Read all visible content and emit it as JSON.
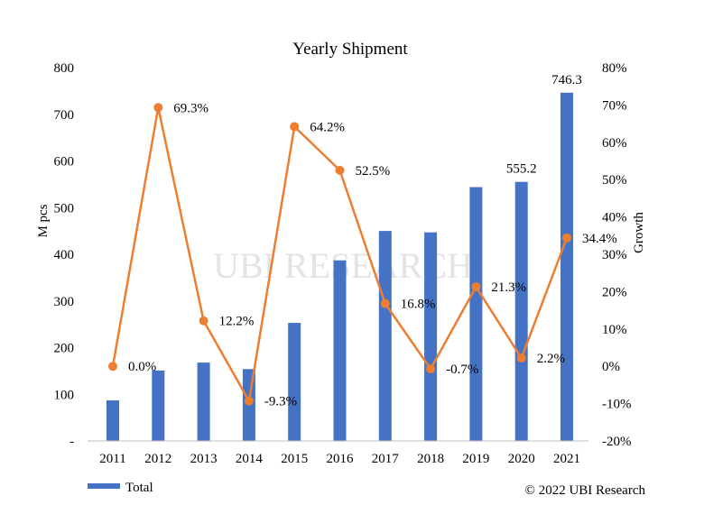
{
  "chart_data": {
    "type": "bar+line",
    "title": "Yearly Shipment",
    "categories": [
      "2011",
      "2012",
      "2013",
      "2014",
      "2015",
      "2016",
      "2017",
      "2018",
      "2019",
      "2020",
      "2021"
    ],
    "series": [
      {
        "name": "Total",
        "type": "bar",
        "axis": "left",
        "color": "#4472C4",
        "values": [
          87,
          151,
          168,
          154,
          253,
          387,
          450,
          447,
          544,
          555.2,
          746.3
        ],
        "data_labels": [
          "",
          "",
          "",
          "",
          "",
          "",
          "",
          "",
          "",
          "555.2",
          "746.3"
        ]
      },
      {
        "type": "line",
        "axis": "right",
        "color": "#ED7D31",
        "values": [
          0.0,
          69.3,
          12.2,
          -9.3,
          64.2,
          52.5,
          16.8,
          -0.7,
          21.3,
          2.2,
          34.4
        ],
        "data_labels": [
          "0.0%",
          "69.3%",
          "12.2%",
          "-9.3%",
          "64.2%",
          "52.5%",
          "16.8%",
          "-0.7%",
          "21.3%",
          "2.2%",
          "34.4%"
        ]
      }
    ],
    "ylabel": "M pcs",
    "ylim": [
      0,
      800
    ],
    "yticks": [
      "-",
      "100",
      "200",
      "300",
      "400",
      "500",
      "600",
      "700",
      "800"
    ],
    "y2label": "Growth",
    "y2lim": [
      -20,
      80
    ],
    "y2ticks": [
      "-20%",
      "-10%",
      "0%",
      "10%",
      "20%",
      "30%",
      "40%",
      "50%",
      "60%",
      "70%",
      "80%"
    ],
    "grid": false,
    "legend": {
      "position": "bottom-left",
      "entries": [
        "Total"
      ]
    }
  },
  "copyright": "© 2022 UBI Research",
  "watermark": "UBI RESEARCH"
}
